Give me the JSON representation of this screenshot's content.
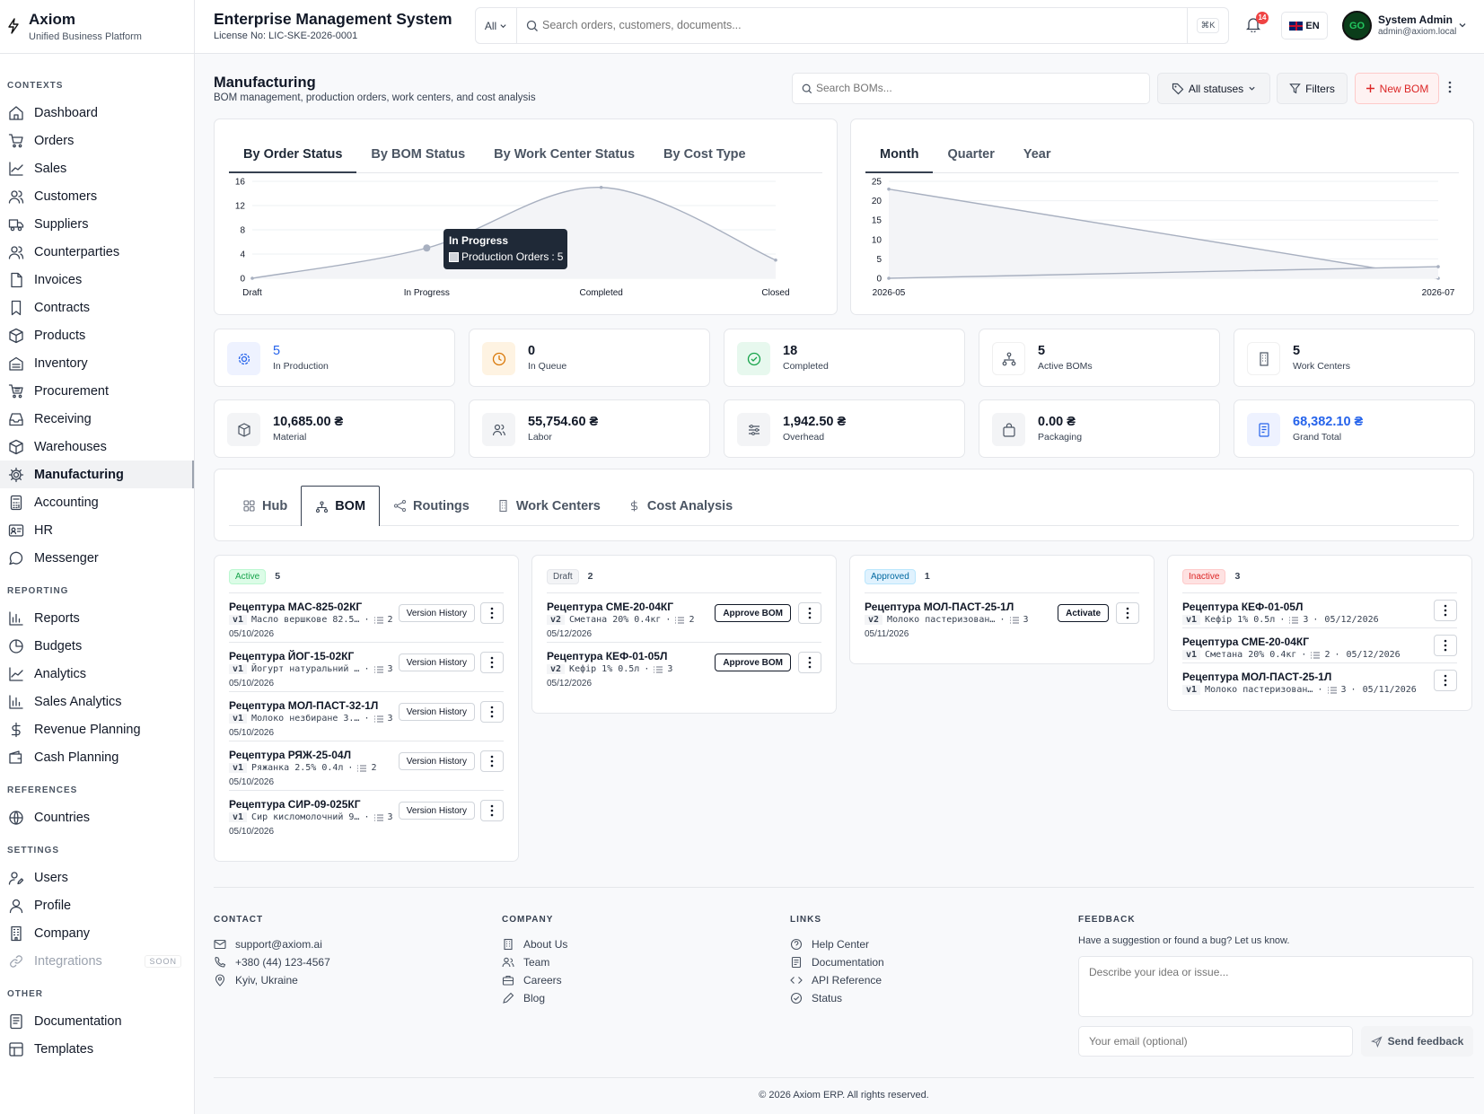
{
  "brand": {
    "name": "Axiom",
    "subtitle": "Unified Business Platform"
  },
  "sidebar": {
    "sections": [
      {
        "label": "CONTEXTS",
        "items": [
          "Dashboard",
          "Orders",
          "Sales",
          "Customers",
          "Suppliers",
          "Counterparties",
          "Invoices",
          "Contracts",
          "Products",
          "Inventory",
          "Procurement",
          "Receiving",
          "Warehouses",
          "Manufacturing",
          "Accounting",
          "HR",
          "Messenger"
        ]
      },
      {
        "label": "REPORTING",
        "items": [
          "Reports",
          "Budgets",
          "Analytics",
          "Sales Analytics",
          "Revenue Planning",
          "Cash Planning"
        ]
      },
      {
        "label": "REFERENCES",
        "items": [
          "Countries"
        ]
      },
      {
        "label": "SETTINGS",
        "items": [
          "Users",
          "Profile",
          "Company",
          "Integrations"
        ]
      },
      {
        "label": "OTHER",
        "items": [
          "Documentation",
          "Templates"
        ]
      }
    ],
    "active_item": "Manufacturing",
    "soon_badge": "SOON"
  },
  "header": {
    "title": "Enterprise Management System",
    "license": "License No: LIC-SKE-2026-0001",
    "search_scope": "All",
    "search_placeholder": "Search orders, customers, documents...",
    "shortcut": "⌘K",
    "notifications": "14",
    "language": "EN",
    "avatar_text": "GO",
    "user_name": "System Admin",
    "user_email": "admin@axiom.local"
  },
  "page": {
    "title": "Manufacturing",
    "subtitle": "BOM management, production orders, work centers, and cost analysis",
    "search_placeholder": "Search BOMs...",
    "status_filter": "All statuses",
    "filters_label": "Filters",
    "new_label": "New BOM"
  },
  "status_chart": {
    "tabs": [
      "By Order Status",
      "By BOM Status",
      "By Work Center Status",
      "By Cost Type"
    ],
    "active_tab": "By Order Status",
    "tooltip": {
      "title": "In Progress",
      "series": "Production Orders",
      "value": "5"
    }
  },
  "period_chart": {
    "tabs": [
      "Month",
      "Quarter",
      "Year"
    ],
    "active_tab": "Month"
  },
  "chart_data": [
    {
      "type": "area",
      "categories": [
        "Draft",
        "In Progress",
        "Completed",
        "Closed"
      ],
      "series": [
        {
          "name": "Production Orders",
          "values": [
            0,
            5,
            15,
            3
          ]
        }
      ],
      "yticks": [
        "0",
        "4",
        "8",
        "12",
        "16"
      ],
      "ylim": [
        0,
        16
      ],
      "grid": true
    },
    {
      "type": "line",
      "categories": [
        "2026-05",
        "2026-07"
      ],
      "series": [
        {
          "values": [
            23,
            0
          ]
        },
        {
          "values": [
            0,
            3
          ]
        }
      ],
      "yticks": [
        "0",
        "5",
        "10",
        "15",
        "20",
        "25"
      ],
      "ylim": [
        0,
        25
      ],
      "grid": true
    }
  ],
  "stats": [
    {
      "value": "5",
      "label": "In Production",
      "icon": "gear-icon",
      "accent": "#2563eb",
      "bg": "#eef2ff",
      "highlight": true
    },
    {
      "value": "0",
      "label": "In Queue",
      "icon": "clock-icon",
      "accent": "#d97706",
      "bg": "#fef3e2",
      "highlight": false
    },
    {
      "value": "18",
      "label": "Completed",
      "icon": "check-circle-icon",
      "accent": "#16a34a",
      "bg": "#e7f8ee",
      "highlight": false
    },
    {
      "value": "5",
      "label": "Active BOMs",
      "icon": "network-icon",
      "accent": "#4b5563",
      "bg": "#ffffff",
      "highlight": false
    },
    {
      "value": "5",
      "label": "Work Centers",
      "icon": "building-icon",
      "accent": "#4b5563",
      "bg": "#ffffff",
      "highlight": false
    },
    {
      "value": "10,685.00 ₴",
      "label": "Material",
      "icon": "box-icon",
      "accent": "#4b5563",
      "bg": "#f3f4f6",
      "highlight": false
    },
    {
      "value": "55,754.60 ₴",
      "label": "Labor",
      "icon": "people-icon",
      "accent": "#4b5563",
      "bg": "#f3f4f6",
      "highlight": false
    },
    {
      "value": "1,942.50 ₴",
      "label": "Overhead",
      "icon": "sliders-icon",
      "accent": "#4b5563",
      "bg": "#f3f4f6",
      "highlight": false
    },
    {
      "value": "0.00 ₴",
      "label": "Packaging",
      "icon": "bag-icon",
      "accent": "#4b5563",
      "bg": "#f3f4f6",
      "highlight": false
    },
    {
      "value": "68,382.10 ₴",
      "label": "Grand Total",
      "icon": "receipt-icon",
      "accent": "#2563eb",
      "bg": "#eef2ff",
      "highlight": true
    }
  ],
  "module_tabs": [
    {
      "label": "Hub",
      "icon": "grid-icon"
    },
    {
      "label": "BOM",
      "icon": "network-icon"
    },
    {
      "label": "Routings",
      "icon": "share-icon"
    },
    {
      "label": "Work Centers",
      "icon": "building-icon"
    },
    {
      "label": "Cost Analysis",
      "icon": "dollar-icon"
    }
  ],
  "active_module_tab": "BOM",
  "kanban": [
    {
      "status": "Active",
      "count": "5",
      "color": "#16a34a",
      "bg": "#dcfce7",
      "border": "#bbf7d0",
      "items": [
        {
          "name": "Рецептура МАС-825-02КГ",
          "ver": "v1",
          "product": "Масло вершкове 82.5…",
          "lines": "2",
          "date": "05/10/2026",
          "action": "Version History"
        },
        {
          "name": "Рецептура ЙОГ-15-02КГ",
          "ver": "v1",
          "product": "Йогурт натуральний …",
          "lines": "3",
          "date": "05/10/2026",
          "action": "Version History"
        },
        {
          "name": "Рецептура МОЛ-ПАСТ-32-1Л",
          "ver": "v1",
          "product": "Молоко незбиране 3.…",
          "lines": "3",
          "date": "05/10/2026",
          "action": "Version History"
        },
        {
          "name": "Рецептура РЯЖ-25-04Л",
          "ver": "v1",
          "product": "Ряжанка 2.5% 0.4л",
          "lines": "2",
          "date": "05/10/2026",
          "action": "Version History"
        },
        {
          "name": "Рецептура СИР-09-025КГ",
          "ver": "v1",
          "product": "Сир кисломолочний 9…",
          "lines": "3",
          "date": "05/10/2026",
          "action": "Version History"
        }
      ]
    },
    {
      "status": "Draft",
      "count": "2",
      "color": "#4b5563",
      "bg": "#f3f4f6",
      "border": "#e5e7eb",
      "items": [
        {
          "name": "Рецептура СМЕ-20-04КГ",
          "ver": "v2",
          "product": "Сметана 20% 0.4кг",
          "lines": "2",
          "date": "05/12/2026",
          "action": "Approve BOM"
        },
        {
          "name": "Рецептура КЕФ-01-05Л",
          "ver": "v2",
          "product": "Кефір 1% 0.5л",
          "lines": "3",
          "date": "05/12/2026",
          "action": "Approve BOM"
        }
      ]
    },
    {
      "status": "Approved",
      "count": "1",
      "color": "#0369a1",
      "bg": "#e0f2fe",
      "border": "#bae6fd",
      "items": [
        {
          "name": "Рецептура МОЛ-ПАСТ-25-1Л",
          "ver": "v2",
          "product": "Молоко пастеризован…",
          "lines": "3",
          "date": "05/11/2026",
          "action": "Activate"
        }
      ]
    },
    {
      "status": "Inactive",
      "count": "3",
      "color": "#dc2626",
      "bg": "#fee2e2",
      "border": "#fecaca",
      "items": [
        {
          "name": "Рецептура КЕФ-01-05Л",
          "ver": "v1",
          "product": "Кефір 1% 0.5л",
          "lines": "3",
          "date": "05/12/2026",
          "action": ""
        },
        {
          "name": "Рецептура СМЕ-20-04КГ",
          "ver": "v1",
          "product": "Сметана 20% 0.4кг",
          "lines": "2",
          "date": "05/12/2026",
          "action": ""
        },
        {
          "name": "Рецептура МОЛ-ПАСТ-25-1Л",
          "ver": "v1",
          "product": "Молоко пастеризован…",
          "lines": "3",
          "date": "05/11/2026",
          "action": ""
        }
      ]
    }
  ],
  "footer": {
    "contact": {
      "label": "CONTACT",
      "email": "support@axiom.ai",
      "phone": "+380 (44) 123-4567",
      "location": "Kyiv, Ukraine"
    },
    "company": {
      "label": "COMPANY",
      "links": [
        "About Us",
        "Team",
        "Careers",
        "Blog"
      ]
    },
    "links": {
      "label": "LINKS",
      "links": [
        "Help Center",
        "Documentation",
        "API Reference",
        "Status"
      ]
    },
    "feedback": {
      "label": "FEEDBACK",
      "text": "Have a suggestion or found a bug? Let us know.",
      "placeholder": "Describe your idea or issue...",
      "email_placeholder": "Your email (optional)",
      "send": "Send feedback"
    },
    "copyright": "© 2026 Axiom ERP. All rights reserved."
  }
}
